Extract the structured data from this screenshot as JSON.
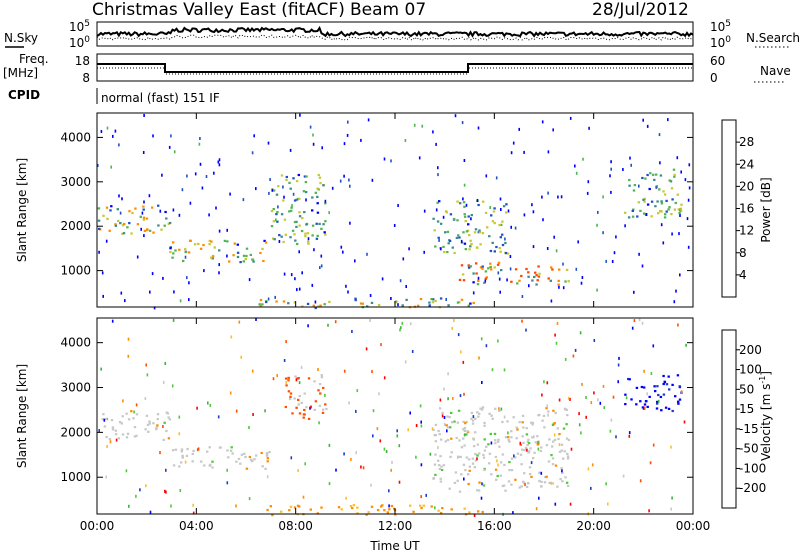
{
  "header": {
    "title": "Christmas Valley East (fitACF)",
    "beam": "Beam 07",
    "date": "28/Jul/2012"
  },
  "status_panels": {
    "nsky_label": "N.Sky",
    "nsearch_label": "N.Search",
    "noise_ticks": [
      "10^5",
      "10^0"
    ],
    "noise_ticks_right": [
      "10^5",
      "10^0"
    ],
    "freq_label": "Freq.",
    "freq_unit": "[MHz]",
    "freq_ticks": [
      "18",
      "8"
    ],
    "nave_label": "Nave",
    "nave_ticks": [
      "60",
      "0"
    ],
    "cpid_label": "CPID",
    "cpid_value": "normal (fast) 151 IF"
  },
  "colors": {
    "power_scale": [
      "#0000ff",
      "#2050c8",
      "#3c8c8c",
      "#50b450",
      "#c8c832",
      "#ff8c00",
      "#ff4600",
      "#ff0000"
    ],
    "velocity_scale": [
      "#ff0000",
      "#ff5000",
      "#ff8c00",
      "#ffbe28",
      "#c8c8c8",
      "#50c83c",
      "#3cb43c",
      "#1e3cc8",
      "#0000ff"
    ]
  },
  "chart_data": [
    {
      "type": "heatmap",
      "title": "",
      "quantity": "Power",
      "xlabel": "",
      "ylabel": "Slant Range [km]",
      "xlim": [
        "00:00",
        "24:00"
      ],
      "ylim": [
        180,
        4550
      ],
      "x_ticks": [
        "00:00",
        "04:00",
        "08:00",
        "12:00",
        "16:00",
        "20:00",
        "00:00"
      ],
      "y_ticks": [
        1000,
        2000,
        3000,
        4000
      ],
      "colorbar": {
        "label": "Power [dB]",
        "min": 0,
        "max": 32,
        "ticks": [
          4,
          8,
          12,
          16,
          20,
          24,
          28
        ]
      },
      "regions": [
        {
          "t": [
            0.0,
            2.9
          ],
          "range_km": [
            1850,
            2500
          ],
          "peak_db": 22
        },
        {
          "t": [
            2.9,
            7.0
          ],
          "range_km": [
            1200,
            1700
          ],
          "peak_db": 22
        },
        {
          "t": [
            7.0,
            9.2
          ],
          "range_km": [
            1600,
            3200
          ],
          "peak_db": 18
        },
        {
          "t": [
            13.5,
            16.5
          ],
          "range_km": [
            1400,
            2600
          ],
          "peak_db": 18
        },
        {
          "t": [
            14.5,
            19.0
          ],
          "range_km": [
            700,
            1200
          ],
          "peak_db": 28
        },
        {
          "t": [
            21.2,
            23.5
          ],
          "range_km": [
            2200,
            3300
          ],
          "peak_db": 20
        },
        {
          "t": [
            6.5,
            15.5
          ],
          "range_km": [
            180,
            400
          ],
          "peak_db": 24
        }
      ]
    },
    {
      "type": "heatmap",
      "title": "",
      "quantity": "Velocity",
      "xlabel": "Time UT",
      "ylabel": "Slant Range [km]",
      "xlim": [
        "00:00",
        "24:00"
      ],
      "ylim": [
        180,
        4550
      ],
      "x_ticks": [
        "00:00",
        "04:00",
        "08:00",
        "12:00",
        "16:00",
        "20:00",
        "00:00"
      ],
      "y_ticks": [
        1000,
        2000,
        3000,
        4000
      ],
      "colorbar": {
        "label": "Velocity [m s^-1]",
        "min": -250,
        "max": 250,
        "ticks": [
          200,
          100,
          50,
          15,
          -15,
          -50,
          -100,
          -200
        ]
      },
      "regions": [
        {
          "t": [
            0.0,
            2.9
          ],
          "range_km": [
            1850,
            2500
          ],
          "velocity": 0
        },
        {
          "t": [
            2.9,
            7.0
          ],
          "range_km": [
            1200,
            1700
          ],
          "velocity": 0
        },
        {
          "t": [
            7.5,
            9.2
          ],
          "range_km": [
            2300,
            3300
          ],
          "velocity": -100
        },
        {
          "t": [
            13.5,
            19.0
          ],
          "range_km": [
            700,
            2600
          ],
          "velocity": 0
        },
        {
          "t": [
            21.2,
            23.5
          ],
          "range_km": [
            2500,
            3300
          ],
          "velocity": 200
        },
        {
          "t": [
            6.5,
            15.5
          ],
          "range_km": [
            180,
            400
          ],
          "velocity": -50
        }
      ]
    }
  ]
}
